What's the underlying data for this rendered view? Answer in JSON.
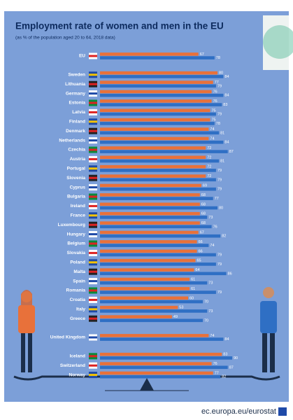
{
  "chart_data": {
    "type": "bar",
    "orientation": "horizontal",
    "title": "Employment rate of women and men in the EU",
    "subtitle": "(as % of the population aged 20 to 64, 2018 data)",
    "source": "ec.europa.eu/eurostat",
    "categories": [
      "EU",
      "Sweden",
      "Lithuania",
      "Germany",
      "Estonia",
      "Latvia",
      "Finland",
      "Denmark",
      "Netherlands",
      "Czechia",
      "Austria",
      "Portugal",
      "Slovenia",
      "Cyprus",
      "Bulgaria",
      "Ireland",
      "France",
      "Luxembourg",
      "Hungary",
      "Belgium",
      "Slovakia",
      "Poland",
      "Malta",
      "Spain",
      "Romania",
      "Croatia",
      "Italy",
      "Greece",
      "United Kingdom",
      "Iceland",
      "Switzerland",
      "Norway"
    ],
    "series": [
      {
        "color": "#e8713a",
        "values": [
          67,
          80,
          77,
          76,
          76,
          75,
          75,
          74,
          74,
          72,
          72,
          72,
          72,
          69,
          68,
          68,
          68,
          68,
          67,
          66,
          66,
          65,
          64,
          61,
          61,
          60,
          53,
          49,
          74,
          83,
          76,
          77
        ]
      },
      {
        "color": "#2f6fc4",
        "values": [
          78,
          84,
          79,
          84,
          83,
          79,
          78,
          81,
          84,
          87,
          81,
          79,
          79,
          79,
          77,
          80,
          73,
          76,
          82,
          74,
          79,
          79,
          86,
          73,
          79,
          70,
          73,
          70,
          84,
          90,
          87,
          82
        ]
      }
    ]
  }
}
